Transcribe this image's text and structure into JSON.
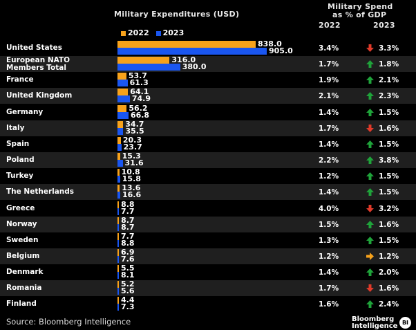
{
  "header": {
    "expenditure_title": "Military Expenditures (USD)",
    "gdp_title_line1": "Military Spend",
    "gdp_title_line2": "as % of GDP",
    "col_2022": "2022",
    "col_2023": "2023"
  },
  "legend": [
    {
      "label": "2022",
      "color": "#f7a21b"
    },
    {
      "label": "2023",
      "color": "#1a56f0"
    }
  ],
  "colors": {
    "bar_2022": "#f7a21b",
    "bar_2023": "#1a56f0",
    "arrow_up": "#1fa33a",
    "arrow_down": "#e03a2a",
    "arrow_right": "#f7a21b"
  },
  "chart_data": {
    "type": "bar",
    "title": "Military Expenditures (USD)",
    "categories": [
      "United States",
      "European NATO Members Total",
      "France",
      "United Kingdom",
      "Germany",
      "Italy",
      "Spain",
      "Poland",
      "Turkey",
      "The Netherlands",
      "Greece",
      "Norway",
      "Sweden",
      "Belgium",
      "Denmark",
      "Romania",
      "Finland"
    ],
    "series": [
      {
        "name": "2022",
        "values": [
          838.0,
          316.0,
          53.7,
          64.1,
          56.2,
          34.7,
          20.3,
          15.3,
          10.8,
          13.6,
          8.8,
          8.7,
          7.7,
          6.9,
          5.5,
          5.2,
          4.4
        ]
      },
      {
        "name": "2023",
        "values": [
          905.0,
          380.0,
          61.3,
          74.9,
          66.8,
          35.5,
          23.7,
          31.6,
          15.8,
          16.6,
          7.7,
          8.7,
          8.8,
          7.6,
          8.1,
          5.6,
          7.3
        ]
      }
    ],
    "gdp_share": {
      "columns": [
        "2022",
        "2023"
      ],
      "values_2022": [
        "3.4%",
        "1.7%",
        "1.9%",
        "2.1%",
        "1.4%",
        "1.7%",
        "1.4%",
        "2.2%",
        "1.2%",
        "1.4%",
        "4.0%",
        "1.5%",
        "1.3%",
        "1.2%",
        "1.4%",
        "1.7%",
        "1.6%"
      ],
      "values_2023": [
        "3.3%",
        "1.8%",
        "2.1%",
        "2.3%",
        "1.5%",
        "1.6%",
        "1.5%",
        "3.8%",
        "1.5%",
        "1.5%",
        "3.2%",
        "1.6%",
        "1.5%",
        "1.2%",
        "2.0%",
        "1.6%",
        "2.4%"
      ],
      "direction": [
        "down",
        "up",
        "up",
        "up",
        "up",
        "down",
        "up",
        "up",
        "up",
        "up",
        "down",
        "up",
        "up",
        "flat",
        "up",
        "down",
        "up"
      ]
    }
  },
  "row_labels": [
    [
      "United States"
    ],
    [
      "European NATO",
      "Members Total"
    ],
    [
      "France"
    ],
    [
      "United Kingdom"
    ],
    [
      "Germany"
    ],
    [
      "Italy"
    ],
    [
      "Spain"
    ],
    [
      "Poland"
    ],
    [
      "Turkey"
    ],
    [
      "The Netherlands"
    ],
    [
      "Greece"
    ],
    [
      "Norway"
    ],
    [
      "Sweden"
    ],
    [
      "Belgium"
    ],
    [
      "Denmark"
    ],
    [
      "Romania"
    ],
    [
      "Finland"
    ]
  ],
  "footer": {
    "source": "Source: Bloomberg Intelligence",
    "brand_line1": "Bloomberg",
    "brand_line2": "Intelligence",
    "brand_badge": "BI"
  }
}
